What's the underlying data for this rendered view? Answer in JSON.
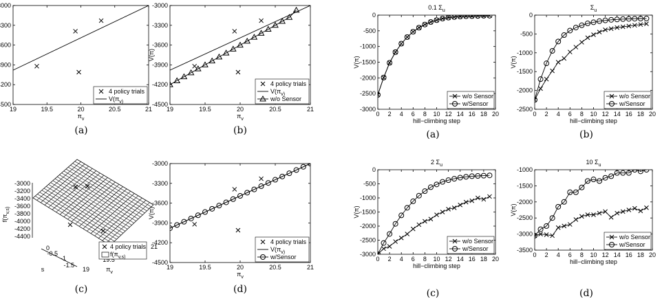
{
  "chart_data": [
    {
      "id": "left_a",
      "type": "scatter",
      "caption": "(a)",
      "xlabel": "π_v",
      "ylabel": "V(π)",
      "xlim": [
        19,
        21
      ],
      "ylim": [
        -4500,
        -3000
      ],
      "xticks": [
        "19",
        "19.5",
        "20",
        "20.5",
        "21"
      ],
      "yticks": [
        "-3000",
        "-3300",
        "-3600",
        "-3900",
        "-4200",
        "-4500"
      ],
      "series": [
        {
          "name": "4 policy trials",
          "marker": "x",
          "x": [
            19.35,
            19.92,
            19.97,
            20.3
          ],
          "y": [
            -3920,
            -3390,
            -4010,
            -3230
          ]
        },
        {
          "name": "V(π_v)",
          "marker": "line",
          "x": [
            19,
            21
          ],
          "y": [
            -3980,
            -3000
          ]
        }
      ],
      "legend": "bottom-right"
    },
    {
      "id": "left_b",
      "type": "scatter",
      "caption": "(b)",
      "xlabel": "π_v",
      "ylabel": "V(π)",
      "xlim": [
        19,
        21
      ],
      "ylim": [
        -4500,
        -3000
      ],
      "xticks": [
        "19",
        "19.5",
        "20",
        "20.5",
        "21"
      ],
      "yticks": [
        "-3000",
        "-3300",
        "-3600",
        "-3900",
        "-4200",
        "-4500"
      ],
      "series": [
        {
          "name": "4 policy trials",
          "marker": "x",
          "x": [
            19.35,
            19.92,
            19.97,
            20.3
          ],
          "y": [
            -3920,
            -3390,
            -4010,
            -3230
          ]
        },
        {
          "name": "V(π_v)",
          "marker": "line",
          "x": [
            19,
            21
          ],
          "y": [
            -3980,
            -3000
          ]
        },
        {
          "name": "w/o Sensor",
          "marker": "triangle",
          "x": [
            19.0,
            19.1,
            19.2,
            19.3,
            19.4,
            19.5,
            19.6,
            19.7,
            19.8,
            19.9,
            20.0,
            20.1,
            20.2,
            20.3,
            20.4,
            20.5,
            20.6,
            20.7,
            20.8
          ],
          "y": [
            -4200,
            -4140,
            -4080,
            -4020,
            -3960,
            -3900,
            -3840,
            -3780,
            -3720,
            -3660,
            -3600,
            -3540,
            -3480,
            -3420,
            -3360,
            -3300,
            -3240,
            -3180,
            -3070
          ]
        }
      ],
      "legend": "bottom-right"
    },
    {
      "id": "left_c",
      "type": "surface",
      "caption": "(c)",
      "xlabel": "π_v",
      "ylabel": "s",
      "zlabel": "f(π_v,s)",
      "zticks": [
        "-3000",
        "-3200",
        "-3400",
        "-3600",
        "-3800",
        "-4000",
        "-4200",
        "-4400"
      ],
      "sticks": [
        "0",
        "-0.5",
        "-1",
        "-1.5"
      ],
      "xticks": [
        "19",
        "19.5",
        "21"
      ],
      "series": [
        {
          "name": "4 policy trials",
          "marker": "x"
        },
        {
          "name": "f(π_v,s)",
          "marker": "surface"
        }
      ],
      "legend": "bottom-right"
    },
    {
      "id": "left_d",
      "type": "scatter",
      "caption": "(d)",
      "xlabel": "π_v",
      "ylabel": "V(π)",
      "xlim": [
        19,
        21
      ],
      "ylim": [
        -4500,
        -3000
      ],
      "xticks": [
        "19",
        "19.5",
        "20",
        "20.5",
        "21"
      ],
      "yticks": [
        "-3000",
        "-3300",
        "-3600",
        "-3900",
        "-4200",
        "-4500"
      ],
      "series": [
        {
          "name": "4 policy trials",
          "marker": "x",
          "x": [
            19.35,
            19.92,
            19.97,
            20.3
          ],
          "y": [
            -3920,
            -3390,
            -4010,
            -3230
          ]
        },
        {
          "name": "V(π_v)",
          "marker": "line",
          "x": [
            19,
            21
          ],
          "y": [
            -3980,
            -3000
          ]
        },
        {
          "name": "w/Sensor",
          "marker": "circle",
          "x": [
            19.0,
            19.1,
            19.2,
            19.3,
            19.4,
            19.5,
            19.6,
            19.7,
            19.8,
            19.9,
            20.0,
            20.1,
            20.2,
            20.3,
            20.4,
            20.5,
            20.6,
            20.7,
            20.8,
            20.9,
            21.0
          ],
          "y": [
            -3980,
            -3931,
            -3882,
            -3833,
            -3784,
            -3735,
            -3686,
            -3637,
            -3588,
            -3539,
            -3490,
            -3441,
            -3392,
            -3343,
            -3294,
            -3245,
            -3196,
            -3147,
            -3098,
            -3049,
            -3000
          ]
        }
      ],
      "legend": "bottom-right"
    },
    {
      "id": "right_a",
      "type": "line",
      "caption": "(a)",
      "title": "0.1 Σ_u",
      "xlabel": "hill−climbing step",
      "ylabel": "V(π)",
      "xlim": [
        0,
        20
      ],
      "ylim": [
        -3000,
        0
      ],
      "xticks": [
        "0",
        "2",
        "4",
        "6",
        "8",
        "10",
        "12",
        "14",
        "16",
        "18",
        "20"
      ],
      "yticks": [
        "0",
        "-500",
        "-1000",
        "-1500",
        "-2000",
        "-2500",
        "-3000"
      ],
      "x": [
        0,
        1,
        2,
        3,
        4,
        5,
        6,
        7,
        8,
        9,
        10,
        11,
        12,
        13,
        14,
        15,
        16,
        17,
        18,
        19
      ],
      "series": [
        {
          "name": "w/o Sensor",
          "marker": "x",
          "values": [
            -2540,
            -1990,
            -1520,
            -1180,
            -910,
            -700,
            -530,
            -400,
            -300,
            -220,
            -160,
            -110,
            -80,
            -60,
            -45,
            -35,
            -30,
            -25,
            -20,
            -18
          ]
        },
        {
          "name": "w/Sensor",
          "marker": "circle",
          "values": [
            -2540,
            -1990,
            -1520,
            -1180,
            -910,
            -700,
            -530,
            -400,
            -300,
            -220,
            -160,
            -110,
            -80,
            -60,
            -45,
            -35,
            -30,
            -25,
            -20,
            -18
          ]
        }
      ],
      "legend": "bottom-right"
    },
    {
      "id": "right_b",
      "type": "line",
      "caption": "(b)",
      "title": "Σ_u",
      "xlabel": "hill−climbing step",
      "ylabel": "V(π)",
      "xlim": [
        0,
        20
      ],
      "ylim": [
        -2500,
        0
      ],
      "xticks": [
        "0",
        "2",
        "4",
        "6",
        "8",
        "10",
        "12",
        "14",
        "16",
        "18",
        "20"
      ],
      "yticks": [
        "0",
        "-500",
        "-1000",
        "-1500",
        "-2000",
        "-2500"
      ],
      "x": [
        0,
        1,
        2,
        3,
        4,
        5,
        6,
        7,
        8,
        9,
        10,
        11,
        12,
        13,
        14,
        15,
        16,
        17,
        18,
        19
      ],
      "series": [
        {
          "name": "w/o Sensor",
          "marker": "x",
          "values": [
            -2250,
            -1950,
            -1700,
            -1480,
            -1250,
            -1150,
            -980,
            -850,
            -720,
            -600,
            -520,
            -450,
            -390,
            -360,
            -330,
            -310,
            -290,
            -270,
            -250,
            -230
          ]
        },
        {
          "name": "w/Sensor",
          "marker": "circle",
          "values": [
            -2250,
            -1700,
            -1280,
            -950,
            -700,
            -530,
            -410,
            -330,
            -270,
            -220,
            -190,
            -160,
            -140,
            -125,
            -115,
            -105,
            -100,
            -95,
            -92,
            -90
          ]
        }
      ],
      "legend": "bottom-right"
    },
    {
      "id": "right_c",
      "type": "line",
      "caption": "(c)",
      "title": "2 Σ_u",
      "xlabel": "hill−climbing step",
      "ylabel": "V(π)",
      "xlim": [
        0,
        20
      ],
      "ylim": [
        -3000,
        0
      ],
      "xticks": [
        "0",
        "2",
        "4",
        "6",
        "8",
        "10",
        "12",
        "14",
        "16",
        "18",
        "20"
      ],
      "yticks": [
        "0",
        "-500",
        "-1000",
        "-1500",
        "-2000",
        "-2500",
        "-3000"
      ],
      "x": [
        0,
        1,
        2,
        3,
        4,
        5,
        6,
        7,
        8,
        9,
        10,
        11,
        12,
        13,
        14,
        15,
        16,
        17,
        18,
        19
      ],
      "series": [
        {
          "name": "w/o Sensor",
          "marker": "x",
          "values": [
            -3000,
            -2800,
            -2720,
            -2550,
            -2420,
            -2280,
            -2100,
            -1950,
            -1830,
            -1750,
            -1600,
            -1500,
            -1400,
            -1350,
            -1250,
            -1150,
            -1100,
            -1000,
            -1050,
            -950
          ]
        },
        {
          "name": "w/Sensor",
          "marker": "circle",
          "values": [
            -3000,
            -2600,
            -2280,
            -1920,
            -1620,
            -1350,
            -1120,
            -920,
            -760,
            -620,
            -520,
            -430,
            -370,
            -320,
            -280,
            -250,
            -230,
            -220,
            -210,
            -200
          ]
        }
      ],
      "legend": "bottom-right"
    },
    {
      "id": "right_d",
      "type": "line",
      "caption": "(d)",
      "title": "10 Σ_u",
      "xlabel": "hill−climbing step",
      "ylabel": "V(π)",
      "xlim": [
        0,
        20
      ],
      "ylim": [
        -3500,
        -1000
      ],
      "xticks": [
        "0",
        "2",
        "4",
        "6",
        "8",
        "10",
        "12",
        "14",
        "16",
        "18",
        "20"
      ],
      "yticks": [
        "-1000",
        "-1500",
        "-2000",
        "-2500",
        "-3000",
        "-3500"
      ],
      "x": [
        0,
        1,
        2,
        3,
        4,
        5,
        6,
        7,
        8,
        9,
        10,
        11,
        12,
        13,
        14,
        15,
        16,
        17,
        18,
        19
      ],
      "series": [
        {
          "name": "w/o Sensor",
          "marker": "x",
          "values": [
            -3050,
            -3000,
            -3020,
            -3050,
            -2800,
            -2750,
            -2700,
            -2550,
            -2450,
            -2400,
            -2400,
            -2350,
            -2300,
            -2480,
            -2350,
            -2300,
            -2250,
            -2200,
            -2280,
            -2180
          ]
        },
        {
          "name": "w/Sensor",
          "marker": "circle",
          "values": [
            -3050,
            -2850,
            -2750,
            -2500,
            -2150,
            -2000,
            -1700,
            -1700,
            -1550,
            -1350,
            -1300,
            -1350,
            -1250,
            -1200,
            -1100,
            -1100,
            -1100,
            -1000,
            -1050,
            -1000
          ]
        }
      ],
      "legend": "bottom-right"
    }
  ]
}
